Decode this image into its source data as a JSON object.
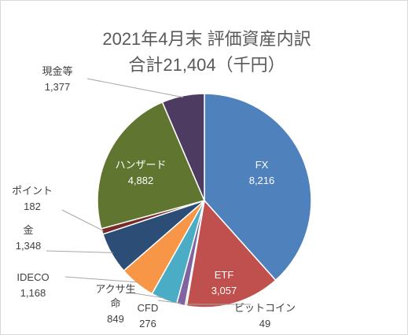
{
  "chart_data": {
    "type": "pie",
    "title_line1": "2021年4月末 評価資産内訳",
    "title_line2": "合計21,404（千円）",
    "start_angle_deg": 0,
    "direction": "clockwise",
    "slices": [
      {
        "name": "FX",
        "value": 8216,
        "value_label": "8,216",
        "color": "#4f81bd",
        "label_inside": true
      },
      {
        "name": "ETF",
        "value": 3057,
        "value_label": "3,057",
        "color": "#c0504d",
        "label_inside": true
      },
      {
        "name": "ビットコイン",
        "value": 49,
        "value_label": "49",
        "color": "#9bbb59",
        "label_inside": false
      },
      {
        "name": "CFD",
        "value": 276,
        "value_label": "276",
        "color": "#8064a2",
        "label_inside": false
      },
      {
        "name": "アクサ生命",
        "name_line1": "アクサ生",
        "name_line2": "命",
        "value": 849,
        "value_label": "849",
        "color": "#4bacc6",
        "label_inside": false
      },
      {
        "name": "IDECO",
        "value": 1168,
        "value_label": "1,168",
        "color": "#f79646",
        "label_inside": false
      },
      {
        "name": "金",
        "value": 1348,
        "value_label": "1,348",
        "color": "#2c4d75",
        "label_inside": false
      },
      {
        "name": "ポイント",
        "value": 182,
        "value_label": "182",
        "color": "#772c2a",
        "label_inside": false
      },
      {
        "name": "ハンザード",
        "value": 4882,
        "value_label": "4,882",
        "color": "#5f7530",
        "label_inside": true
      },
      {
        "name": "現金等",
        "value": 1377,
        "value_label": "1,377",
        "color": "#4d3b62",
        "label_inside": false
      }
    ]
  }
}
